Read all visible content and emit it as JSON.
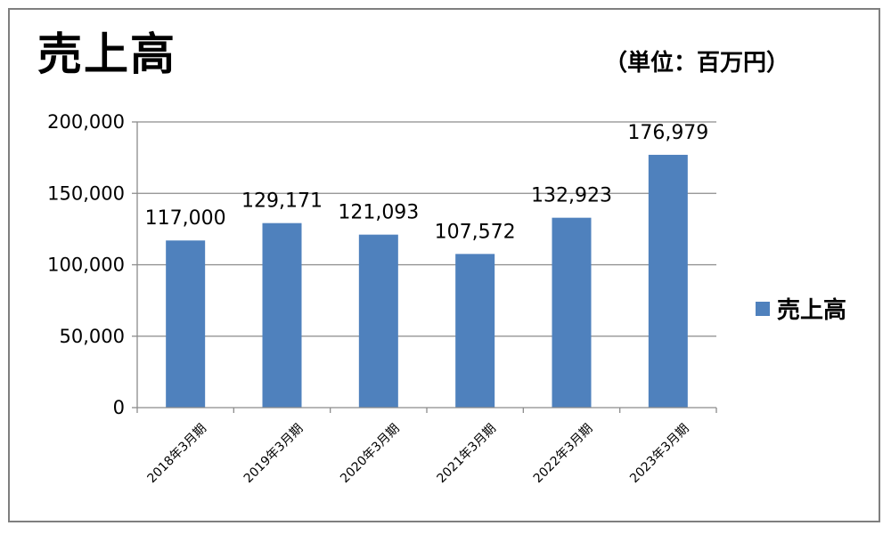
{
  "header": {
    "title": "売上高",
    "unit": "（単位：百万円）"
  },
  "chart_data": {
    "type": "bar",
    "title": "売上高",
    "categories": [
      "2018年3月期",
      "2019年3月期",
      "2020年3月期",
      "2021年3月期",
      "2022年3月期",
      "2023年3月期"
    ],
    "series": [
      {
        "name": "売上高",
        "values": [
          117000,
          129171,
          121093,
          107572,
          132923,
          176979
        ],
        "color": "#4f81bd"
      }
    ],
    "data_labels": [
      "117,000",
      "129,171",
      "121,093",
      "107,572",
      "132,923",
      "176,979"
    ],
    "yticks": [
      0,
      50000,
      100000,
      150000,
      200000
    ],
    "ytick_labels": [
      "0",
      "50,000",
      "100,000",
      "150,000",
      "200,000"
    ],
    "ylim": [
      0,
      200000
    ],
    "xlabel": "",
    "ylabel": "",
    "grid": true,
    "legend": "right",
    "colors": {
      "bar": "#4f81bd",
      "grid": "#8c8c8c",
      "frame": "#7f7f7f"
    }
  }
}
